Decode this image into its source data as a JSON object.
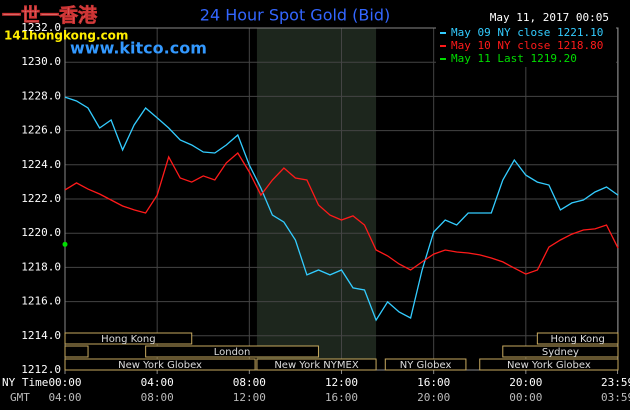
{
  "chart_data": {
    "type": "line",
    "title": "24 Hour Spot Gold (Bid)",
    "timestamp": "May 11, 2017 00:05",
    "watermark": {
      "logo": "一世一香港",
      "site": "141hongkong.com",
      "url": "www.kitco.com"
    },
    "xlabel": "NY Time",
    "x2label": "GMT",
    "xlim": [
      0,
      24
    ],
    "xticks": [
      {
        "value": 0,
        "label": "00:00"
      },
      {
        "value": 4,
        "label": "04:00"
      },
      {
        "value": 8,
        "label": "08:00"
      },
      {
        "value": 12,
        "label": "12:00"
      },
      {
        "value": 16,
        "label": "16:00"
      },
      {
        "value": 20,
        "label": "20:00"
      },
      {
        "value": 23.98,
        "label": "23:59"
      }
    ],
    "x2ticks": [
      "04:00",
      "08:00",
      "12:00",
      "16:00",
      "20:00",
      "00:00",
      "03:59"
    ],
    "ylim": [
      1212,
      1232
    ],
    "yticks": [
      {
        "value": 1212,
        "label": "1212.0"
      },
      {
        "value": 1214,
        "label": "1214.0"
      },
      {
        "value": 1216,
        "label": "1216.0"
      },
      {
        "value": 1218,
        "label": "1218.0"
      },
      {
        "value": 1220,
        "label": "1220.0"
      },
      {
        "value": 1222,
        "label": "1222.0"
      },
      {
        "value": 1224,
        "label": "1224.0"
      },
      {
        "value": 1226,
        "label": "1226.0"
      },
      {
        "value": 1228,
        "label": "1228.0"
      },
      {
        "value": 1230,
        "label": "1230.0"
      },
      {
        "value": 1232,
        "label": "1232.0"
      }
    ],
    "grid": true,
    "shade": {
      "start": 8.33,
      "end": 13.5,
      "color": "#1d261d"
    },
    "x": [
      0,
      0.5,
      1,
      1.5,
      2,
      2.5,
      3,
      3.5,
      4,
      4.5,
      5,
      5.5,
      6,
      6.5,
      7,
      7.5,
      8,
      8.5,
      9,
      9.5,
      10,
      10.5,
      11,
      11.5,
      12,
      12.5,
      13,
      13.5,
      14,
      14.5,
      15,
      15.5,
      16,
      16.5,
      17,
      17.5,
      18,
      18.5,
      19,
      19.5,
      20,
      20.5,
      21,
      21.5,
      22,
      22.5,
      23,
      23.5,
      24
    ],
    "series": [
      {
        "name": "May 09 NY close 1221.10",
        "color": "#33ccff",
        "values": [
          1227.96,
          1227.73,
          1227.32,
          1226.15,
          1226.62,
          1224.87,
          1226.33,
          1227.32,
          1226.74,
          1226.15,
          1225.45,
          1225.16,
          1224.75,
          1224.69,
          1225.16,
          1225.74,
          1223.99,
          1222.64,
          1221.06,
          1220.65,
          1219.6,
          1217.56,
          1217.85,
          1217.56,
          1217.85,
          1216.8,
          1216.68,
          1214.92,
          1215.98,
          1215.39,
          1215.04,
          1217.85,
          1220.07,
          1220.77,
          1220.48,
          1221.18,
          1221.18,
          1221.18,
          1223.11,
          1224.28,
          1223.4,
          1222.99,
          1222.82,
          1221.36,
          1221.77,
          1221.94,
          1222.41,
          1222.7,
          1222.23
        ]
      },
      {
        "name": "May 10 NY close 1218.80",
        "color": "#ff1a1a",
        "values": [
          1222.53,
          1222.94,
          1222.58,
          1222.29,
          1221.94,
          1221.59,
          1221.36,
          1221.18,
          1222.23,
          1224.46,
          1223.23,
          1222.99,
          1223.35,
          1223.11,
          1224.11,
          1224.69,
          1223.58,
          1222.23,
          1223.11,
          1223.81,
          1223.23,
          1223.11,
          1221.65,
          1221.06,
          1220.77,
          1221.01,
          1220.48,
          1219.02,
          1218.67,
          1218.2,
          1217.85,
          1218.32,
          1218.78,
          1219.02,
          1218.9,
          1218.84,
          1218.73,
          1218.55,
          1218.32,
          1217.96,
          1217.61,
          1217.85,
          1219.19,
          1219.6,
          1219.95,
          1220.19,
          1220.25,
          1220.48,
          1219.13
        ]
      },
      {
        "name": "May 11 Last 1219.20",
        "color": "#00dd00",
        "x": [
          0
        ],
        "values": [
          1219.35
        ]
      }
    ],
    "sessions": [
      {
        "name": "Hong Kong",
        "row": 1,
        "start": 0,
        "end": 5.5
      },
      {
        "name": "Hong Kong",
        "row": 1,
        "start": 20.5,
        "end": 24
      },
      {
        "name": null,
        "row": 2,
        "start": 0,
        "end": 1
      },
      {
        "name": "London",
        "row": 2,
        "start": 3.5,
        "end": 11
      },
      {
        "name": "Sydney",
        "row": 2,
        "start": 19,
        "end": 24
      },
      {
        "name": "New York Globex",
        "row": 3,
        "start": 0,
        "end": 8.25
      },
      {
        "name": "New York NYMEX",
        "row": 3,
        "start": 8.33,
        "end": 13.5
      },
      {
        "name": "NY Globex",
        "row": 3,
        "start": 13.9,
        "end": 17.4
      },
      {
        "name": "New York Globex",
        "row": 3,
        "start": 18,
        "end": 24
      }
    ]
  }
}
